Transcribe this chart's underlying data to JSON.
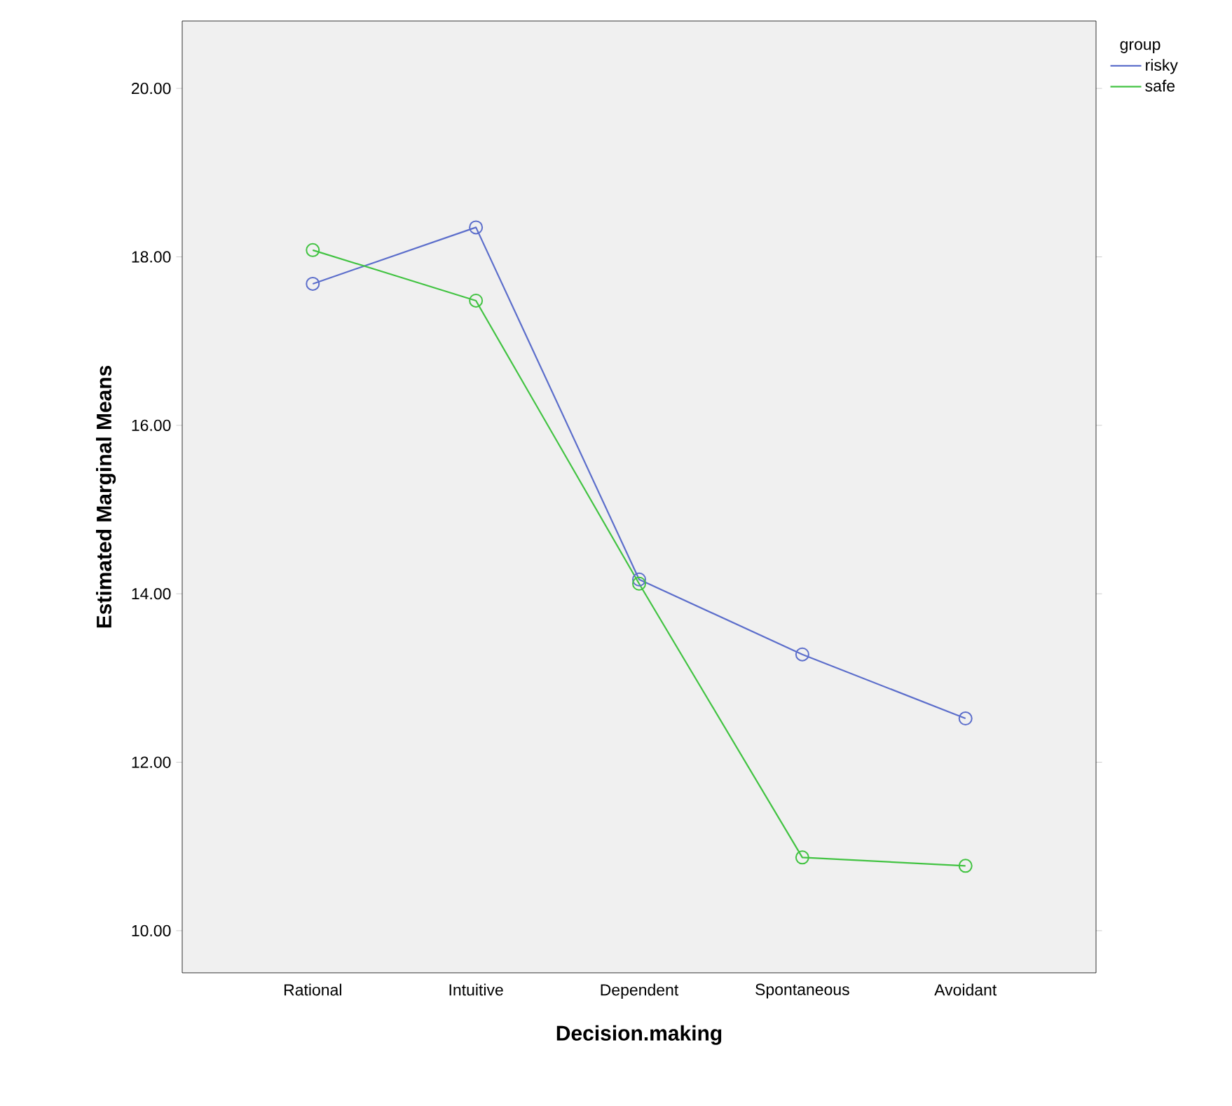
{
  "chart_data": {
    "type": "line",
    "xlabel": "Decision.making",
    "ylabel": "Estimated Marginal Means",
    "legend_title": "group",
    "legend": "top right",
    "marker": "circle",
    "line_style": "solid",
    "grid": false,
    "categories": [
      "Rational",
      "Intuitive",
      "Dependent",
      "Spontaneous",
      "Avoidant"
    ],
    "ylim": [
      9.5,
      20.8
    ],
    "yticks": [
      {
        "value": 10,
        "label": "10.00"
      },
      {
        "value": 12,
        "label": "12.00"
      },
      {
        "value": 14,
        "label": "14.00"
      },
      {
        "value": 16,
        "label": "16.00"
      },
      {
        "value": 18,
        "label": "18.00"
      },
      {
        "value": 20,
        "label": "20.00"
      }
    ],
    "series": [
      {
        "name": "risky",
        "color": "#5c6ecb",
        "values": [
          17.68,
          18.35,
          14.17,
          13.28,
          12.52
        ]
      },
      {
        "name": "safe",
        "color": "#42c342",
        "values": [
          18.08,
          17.48,
          14.12,
          10.87,
          10.77
        ]
      }
    ]
  }
}
